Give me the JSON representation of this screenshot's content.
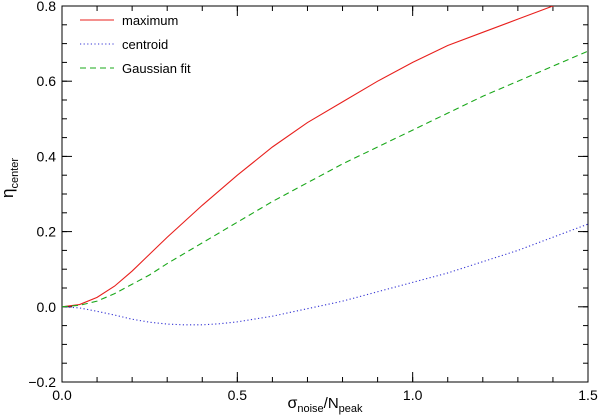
{
  "chart_data": {
    "type": "line",
    "xlabel_main": "σ",
    "xlabel_sub1": "noise",
    "xlabel_mid": "/N",
    "xlabel_sub2": "peak",
    "ylabel_main": "η",
    "ylabel_sub": "center",
    "xlim": [
      0.0,
      1.5
    ],
    "ylim": [
      -0.2,
      0.8
    ],
    "xticks": [
      0.0,
      0.5,
      1.0,
      1.5
    ],
    "xtick_labels": [
      "0.0",
      "0.5",
      "1.0",
      "1.5"
    ],
    "yticks": [
      -0.2,
      0.0,
      0.2,
      0.4,
      0.6,
      0.8
    ],
    "ytick_labels": [
      "−0.2",
      "0.0",
      "0.2",
      "0.4",
      "0.6",
      "0.8"
    ],
    "grid": false,
    "legend_position": "top-left",
    "series": [
      {
        "name": "maximum",
        "color": "#e8201d",
        "style": "solid",
        "x": [
          0.0,
          0.05,
          0.1,
          0.15,
          0.2,
          0.25,
          0.3,
          0.4,
          0.5,
          0.6,
          0.7,
          0.8,
          0.9,
          1.0,
          1.1,
          1.2,
          1.3,
          1.4,
          1.5
        ],
        "y": [
          0.0,
          0.006,
          0.025,
          0.055,
          0.095,
          0.14,
          0.185,
          0.27,
          0.35,
          0.425,
          0.49,
          0.545,
          0.6,
          0.65,
          0.695,
          0.73,
          0.765,
          0.8,
          0.835
        ]
      },
      {
        "name": "centroid",
        "color": "#3535d4",
        "style": "dotted",
        "x": [
          0.0,
          0.05,
          0.1,
          0.15,
          0.2,
          0.25,
          0.3,
          0.35,
          0.4,
          0.45,
          0.5,
          0.6,
          0.7,
          0.8,
          0.9,
          1.0,
          1.1,
          1.2,
          1.3,
          1.4,
          1.5
        ],
        "y": [
          0.0,
          -0.003,
          -0.012,
          -0.022,
          -0.033,
          -0.041,
          -0.046,
          -0.048,
          -0.048,
          -0.045,
          -0.04,
          -0.025,
          -0.005,
          0.015,
          0.04,
          0.065,
          0.09,
          0.12,
          0.15,
          0.185,
          0.22
        ]
      },
      {
        "name": "Gaussian fit",
        "color": "#1aa81a",
        "style": "dashed",
        "x": [
          0.0,
          0.05,
          0.1,
          0.15,
          0.2,
          0.25,
          0.3,
          0.4,
          0.5,
          0.6,
          0.7,
          0.8,
          0.9,
          1.0,
          1.1,
          1.2,
          1.3,
          1.4,
          1.5
        ],
        "y": [
          0.0,
          0.004,
          0.015,
          0.035,
          0.06,
          0.085,
          0.115,
          0.17,
          0.225,
          0.28,
          0.33,
          0.38,
          0.425,
          0.47,
          0.515,
          0.56,
          0.6,
          0.64,
          0.68
        ]
      }
    ]
  }
}
